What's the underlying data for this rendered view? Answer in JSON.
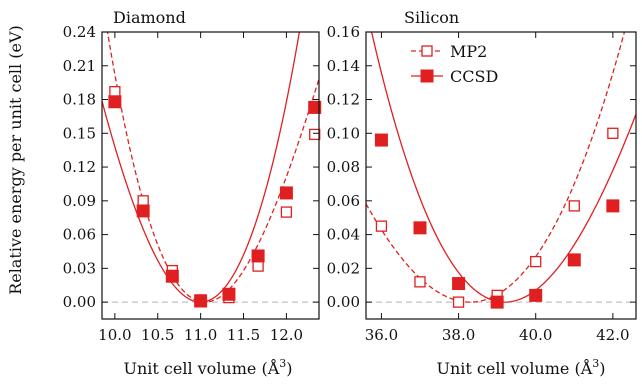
{
  "figure": {
    "ylabel": "Relative energy per unit cell (eV)",
    "colors": {
      "series": "#e02020",
      "zero_line": "#b4b4b4",
      "frame": "#111111"
    }
  },
  "chart_data": [
    {
      "type": "scatter",
      "title": "Diamond",
      "xlabel": "Unit cell volume (Å³)",
      "xlabel_text": "Unit cell volume (Å",
      "xlabel_sup": "3",
      "xlabel_close": ")",
      "ylabel": "Relative energy per unit cell (eV)",
      "xlim": [
        9.85,
        12.38
      ],
      "ylim": [
        -0.015,
        0.24
      ],
      "xticks": [
        10.0,
        10.5,
        11.0,
        11.5,
        12.0
      ],
      "xtick_labels": [
        "10.0",
        "10.5",
        "11.0",
        "11.5",
        "12.0"
      ],
      "yticks": [
        0.0,
        0.03,
        0.06,
        0.09,
        0.12,
        0.15,
        0.18,
        0.21,
        0.24
      ],
      "ytick_labels": [
        "0.00",
        "0.03",
        "0.06",
        "0.09",
        "0.12",
        "0.15",
        "0.18",
        "0.21",
        "0.24"
      ],
      "zero_line": true,
      "series": [
        {
          "name": "MP2",
          "marker": "open-square",
          "line": "dashed",
          "x": [
            10.0,
            10.33,
            10.67,
            11.0,
            11.33,
            11.67,
            12.0,
            12.33
          ],
          "y": [
            0.187,
            0.09,
            0.028,
            0.002,
            0.004,
            0.032,
            0.08,
            0.149
          ],
          "fit": {
            "x0": 11.05,
            "y0": 0.0,
            "a": 0.152,
            "b": -0.03
          }
        },
        {
          "name": "CCSD",
          "marker": "filled-square",
          "line": "solid",
          "x": [
            10.0,
            10.33,
            10.67,
            11.0,
            11.33,
            11.67,
            12.0,
            12.33
          ],
          "y": [
            0.178,
            0.081,
            0.023,
            0.001,
            0.007,
            0.041,
            0.097,
            0.173
          ],
          "fit": {
            "x0": 11.0,
            "y0": 0.0,
            "a": 0.158,
            "b": 0.02
          }
        }
      ]
    },
    {
      "type": "scatter",
      "title": "Silicon",
      "xlabel": "Unit cell volume (Å³)",
      "xlabel_text": "Unit cell volume (Å",
      "xlabel_sup": "3",
      "xlabel_close": ")",
      "xlim": [
        35.6,
        42.6
      ],
      "ylim": [
        -0.01,
        0.16
      ],
      "xticks": [
        36.0,
        38.0,
        40.0,
        42.0
      ],
      "xtick_labels": [
        "36.0",
        "38.0",
        "40.0",
        "42.0"
      ],
      "yticks": [
        0.0,
        0.02,
        0.04,
        0.06,
        0.08,
        0.1,
        0.12,
        0.14,
        0.16
      ],
      "ytick_labels": [
        "0.00",
        "0.02",
        "0.04",
        "0.06",
        "0.08",
        "0.10",
        "0.12",
        "0.14",
        "0.16"
      ],
      "zero_line": true,
      "legend": {
        "placement": "top-left",
        "entries": [
          "MP2",
          "CCSD"
        ]
      },
      "series": [
        {
          "name": "MP2",
          "marker": "open-square",
          "line": "dashed",
          "x": [
            36.0,
            37.0,
            38.0,
            39.0,
            40.0,
            41.0,
            42.0
          ],
          "y": [
            0.045,
            0.012,
            0.0,
            0.004,
            0.024,
            0.057,
            0.1
          ],
          "fit": {
            "x0": 38.3,
            "y0": 0.0,
            "a": 0.0088,
            "b": 0.0003
          }
        },
        {
          "name": "CCSD",
          "marker": "filled-square",
          "line": "solid",
          "x": [
            36.0,
            37.0,
            38.0,
            39.0,
            40.0,
            41.0,
            42.0
          ],
          "y": [
            0.096,
            0.044,
            0.011,
            0.0,
            0.004,
            0.025,
            0.057
          ],
          "fit": {
            "x0": 39.2,
            "y0": 0.0,
            "a": 0.0115,
            "b": -0.00055
          }
        }
      ]
    }
  ]
}
